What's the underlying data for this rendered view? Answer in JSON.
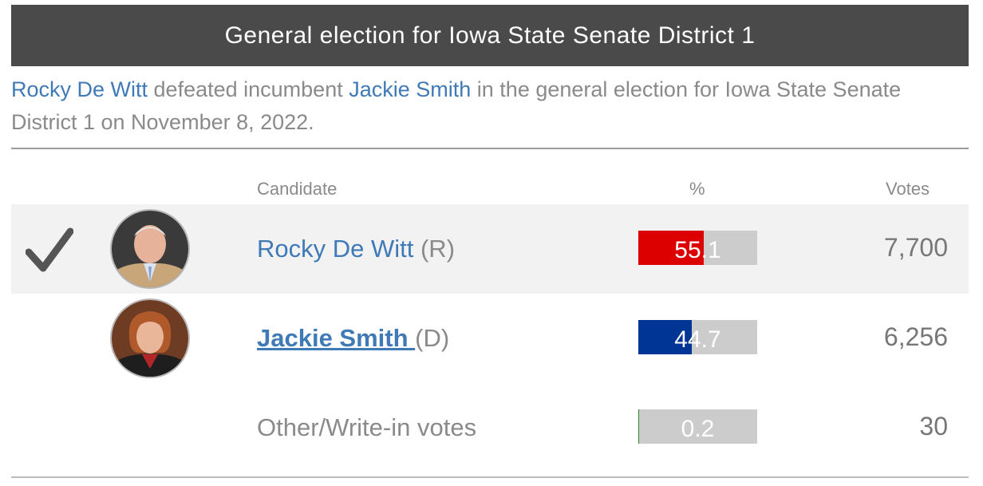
{
  "header": {
    "title": "General election for Iowa State Senate District 1"
  },
  "summary": {
    "winner": "Rocky De Witt",
    "text_1": " defeated incumbent ",
    "loser": "Jackie Smith",
    "text_2": " in the general election for Iowa State Senate District 1 on November 8, 2022."
  },
  "table": {
    "headers": {
      "candidate": "Candidate",
      "percent": "%",
      "votes": "Votes"
    },
    "rows": [
      {
        "name": "Rocky De Witt",
        "party": "(R)",
        "percent": "55.1",
        "percent_value": 55.1,
        "votes": "7,700",
        "bar_color": "#dd0000",
        "winner": true,
        "avatar": "man-portrait"
      },
      {
        "name": "Jackie Smith",
        "party": "(D)",
        "percent": "44.7",
        "percent_value": 44.7,
        "votes": "6,256",
        "bar_color": "#003596",
        "winner": false,
        "avatar": "woman-portrait"
      },
      {
        "name": "Other/Write-in votes",
        "percent": "0.2",
        "percent_value": 0.2,
        "votes": "30",
        "bar_color": "#2e8b2e",
        "winner": false
      }
    ]
  },
  "icons": {
    "winner": "checkmark-icon"
  }
}
